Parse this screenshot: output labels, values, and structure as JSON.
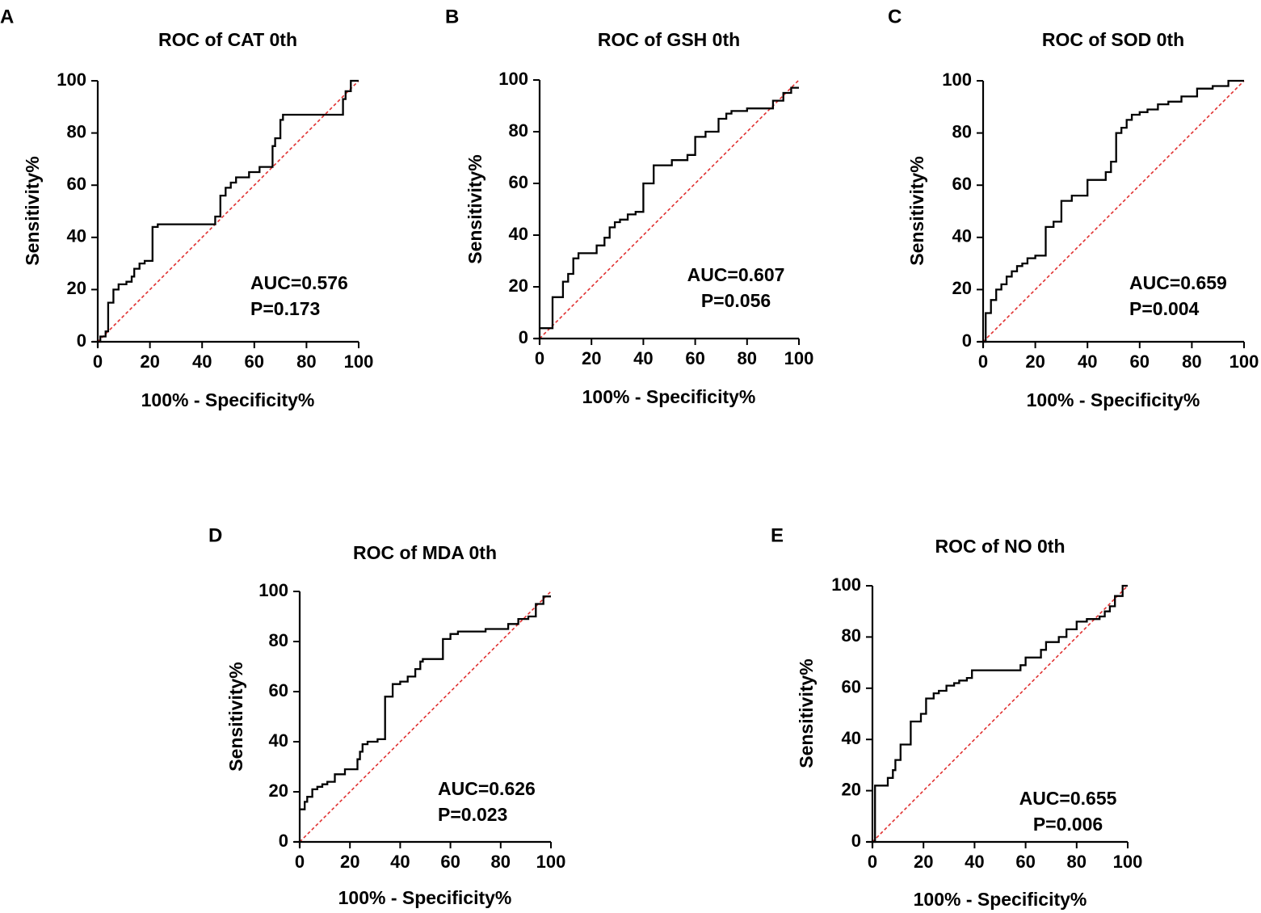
{
  "chart_data": [
    {
      "panel": "A",
      "type": "line",
      "title": "ROC of CAT 0th",
      "xlabel": "100% - Specificity%",
      "ylabel": "Sensitivity%",
      "xlim": [
        0,
        100
      ],
      "ylim": [
        0,
        100
      ],
      "xticks": [
        "0",
        "20",
        "40",
        "60",
        "80",
        "100"
      ],
      "yticks": [
        "0",
        "20",
        "40",
        "60",
        "80",
        "100"
      ],
      "reference_line": {
        "name": "chance",
        "x": [
          0,
          100
        ],
        "y": [
          0,
          100
        ],
        "color": "#e03030"
      },
      "series": [
        {
          "name": "ROC",
          "color": "#000000",
          "x": [
            0,
            1,
            1,
            3,
            3,
            4,
            4,
            6,
            6,
            8,
            8,
            11,
            11,
            13,
            13,
            14,
            14,
            16,
            16,
            18,
            18,
            21,
            21,
            23,
            23,
            45,
            45,
            47,
            47,
            49,
            49,
            51,
            51,
            53,
            53,
            58,
            58,
            62,
            62,
            67,
            67,
            68,
            68,
            70,
            70,
            71,
            71,
            73,
            73,
            94,
            94,
            95,
            95,
            97,
            97,
            100
          ],
          "y": [
            0,
            0,
            2,
            2,
            4,
            4,
            15,
            15,
            20,
            20,
            22,
            22,
            23,
            23,
            25,
            25,
            28,
            28,
            30,
            30,
            31,
            31,
            44,
            44,
            45,
            45,
            48,
            48,
            56,
            56,
            59,
            59,
            61,
            61,
            63,
            63,
            65,
            65,
            67,
            67,
            75,
            75,
            78,
            78,
            85,
            85,
            87,
            87,
            87,
            87,
            93,
            93,
            96,
            96,
            100,
            100
          ]
        }
      ],
      "annotations": {
        "auc": "AUC=0.576",
        "p": "P=0.173"
      }
    },
    {
      "panel": "B",
      "type": "line",
      "title": "ROC of GSH 0th",
      "xlabel": "100% - Specificity%",
      "ylabel": "Sensitivity%",
      "xlim": [
        0,
        100
      ],
      "ylim": [
        0,
        100
      ],
      "xticks": [
        "0",
        "20",
        "40",
        "60",
        "80",
        "100"
      ],
      "yticks": [
        "0",
        "20",
        "40",
        "60",
        "80",
        "100"
      ],
      "reference_line": {
        "name": "chance",
        "x": [
          0,
          100
        ],
        "y": [
          0,
          100
        ],
        "color": "#e03030"
      },
      "series": [
        {
          "name": "ROC",
          "color": "#000000",
          "x": [
            0,
            5,
            5,
            9,
            9,
            11,
            11,
            13,
            13,
            15,
            15,
            22,
            22,
            25,
            25,
            27,
            27,
            29,
            29,
            31,
            31,
            34,
            34,
            37,
            37,
            40,
            40,
            44,
            44,
            51,
            51,
            57,
            57,
            60,
            60,
            64,
            64,
            69,
            69,
            72,
            72,
            74,
            74,
            80,
            80,
            90,
            90,
            94,
            94,
            97,
            97,
            100
          ],
          "y": [
            4,
            4,
            16,
            16,
            22,
            22,
            25,
            25,
            31,
            31,
            33,
            33,
            36,
            36,
            39,
            39,
            43,
            43,
            45,
            45,
            46,
            46,
            48,
            48,
            49,
            49,
            60,
            60,
            67,
            67,
            69,
            69,
            71,
            71,
            78,
            78,
            80,
            80,
            85,
            85,
            87,
            87,
            88,
            88,
            89,
            89,
            92,
            92,
            95,
            95,
            97,
            97
          ]
        }
      ],
      "annotations": {
        "auc": "AUC=0.607",
        "p": "P=0.056"
      }
    },
    {
      "panel": "C",
      "type": "line",
      "title": "ROC of SOD 0th",
      "xlabel": "100% - Specificity%",
      "ylabel": "Sensitivity%",
      "xlim": [
        0,
        100
      ],
      "ylim": [
        0,
        100
      ],
      "xticks": [
        "0",
        "20",
        "40",
        "60",
        "80",
        "100"
      ],
      "yticks": [
        "0",
        "20",
        "40",
        "60",
        "80",
        "100"
      ],
      "reference_line": {
        "name": "chance",
        "x": [
          0,
          100
        ],
        "y": [
          0,
          100
        ],
        "color": "#e03030"
      },
      "series": [
        {
          "name": "ROC",
          "color": "#000000",
          "x": [
            0,
            1,
            1,
            3,
            3,
            5,
            5,
            7,
            7,
            9,
            9,
            11,
            11,
            13,
            13,
            15,
            15,
            17,
            17,
            20,
            20,
            24,
            24,
            27,
            27,
            30,
            30,
            34,
            34,
            40,
            40,
            47,
            47,
            49,
            49,
            51,
            51,
            53,
            53,
            55,
            55,
            57,
            57,
            60,
            60,
            63,
            63,
            67,
            67,
            71,
            71,
            76,
            76,
            82,
            82,
            88,
            88,
            94,
            94,
            100
          ],
          "y": [
            0,
            0,
            11,
            11,
            16,
            16,
            20,
            20,
            22,
            22,
            25,
            25,
            27,
            27,
            29,
            29,
            30,
            30,
            32,
            32,
            33,
            33,
            44,
            44,
            46,
            46,
            54,
            54,
            56,
            56,
            62,
            62,
            65,
            65,
            69,
            69,
            80,
            80,
            82,
            82,
            85,
            85,
            87,
            87,
            88,
            88,
            89,
            89,
            91,
            91,
            92,
            92,
            94,
            94,
            97,
            97,
            98,
            98,
            100,
            100
          ]
        }
      ],
      "annotations": {
        "auc": "AUC=0.659",
        "p": "P=0.004"
      }
    },
    {
      "panel": "D",
      "type": "line",
      "title": "ROC of MDA 0th",
      "xlabel": "100% - Specificity%",
      "ylabel": "Sensitivity%",
      "xlim": [
        0,
        100
      ],
      "ylim": [
        0,
        100
      ],
      "xticks": [
        "0",
        "20",
        "40",
        "60",
        "80",
        "100"
      ],
      "yticks": [
        "0",
        "20",
        "40",
        "60",
        "80",
        "100"
      ],
      "reference_line": {
        "name": "chance",
        "x": [
          0,
          100
        ],
        "y": [
          0,
          100
        ],
        "color": "#e03030"
      },
      "series": [
        {
          "name": "ROC",
          "color": "#000000",
          "x": [
            0,
            2,
            2,
            3,
            3,
            5,
            5,
            7,
            7,
            9,
            9,
            11,
            11,
            14,
            14,
            18,
            18,
            23,
            23,
            24,
            24,
            25,
            25,
            27,
            27,
            31,
            31,
            34,
            34,
            37,
            37,
            40,
            40,
            43,
            43,
            46,
            46,
            48,
            48,
            49,
            49,
            57,
            57,
            60,
            60,
            63,
            63,
            74,
            74,
            83,
            83,
            87,
            87,
            91,
            91,
            94,
            94,
            97,
            97,
            100
          ],
          "y": [
            13,
            13,
            16,
            16,
            18,
            18,
            21,
            21,
            22,
            22,
            23,
            23,
            24,
            24,
            27,
            27,
            29,
            29,
            33,
            33,
            36,
            36,
            39,
            39,
            40,
            40,
            41,
            41,
            58,
            58,
            63,
            63,
            64,
            64,
            66,
            66,
            69,
            69,
            72,
            72,
            73,
            73,
            81,
            81,
            83,
            83,
            84,
            84,
            85,
            85,
            87,
            87,
            89,
            89,
            90,
            90,
            95,
            95,
            98,
            98
          ]
        }
      ],
      "annotations": {
        "auc": "AUC=0.626",
        "p": "P=0.023"
      }
    },
    {
      "panel": "E",
      "type": "line",
      "title": "ROC of NO 0th",
      "xlabel": "100% - Specificity%",
      "ylabel": "Sensitivity%",
      "xlim": [
        0,
        100
      ],
      "ylim": [
        0,
        100
      ],
      "xticks": [
        "0",
        "20",
        "40",
        "60",
        "80",
        "100"
      ],
      "yticks": [
        "0",
        "20",
        "40",
        "60",
        "80",
        "100"
      ],
      "reference_line": {
        "name": "chance",
        "x": [
          0,
          100
        ],
        "y": [
          0,
          100
        ],
        "color": "#e03030"
      },
      "series": [
        {
          "name": "ROC",
          "color": "#000000",
          "x": [
            0,
            1,
            1,
            6,
            6,
            8,
            8,
            9,
            9,
            11,
            11,
            15,
            15,
            19,
            19,
            21,
            21,
            24,
            24,
            26,
            26,
            29,
            29,
            32,
            32,
            34,
            34,
            37,
            37,
            39,
            39,
            58,
            58,
            60,
            60,
            66,
            66,
            68,
            68,
            73,
            73,
            76,
            76,
            80,
            80,
            84,
            84,
            89,
            89,
            91,
            91,
            93,
            93,
            95,
            95,
            98,
            98,
            100
          ],
          "y": [
            0,
            0,
            22,
            22,
            25,
            25,
            28,
            28,
            32,
            32,
            38,
            38,
            47,
            47,
            50,
            50,
            56,
            56,
            58,
            58,
            59,
            59,
            61,
            61,
            62,
            62,
            63,
            63,
            64,
            64,
            67,
            67,
            69,
            69,
            72,
            72,
            75,
            75,
            78,
            78,
            80,
            80,
            83,
            83,
            86,
            86,
            87,
            87,
            88,
            88,
            90,
            90,
            92,
            92,
            96,
            96,
            100,
            100
          ]
        }
      ],
      "annotations": {
        "auc": "AUC=0.655",
        "p": "P=0.006"
      }
    }
  ]
}
